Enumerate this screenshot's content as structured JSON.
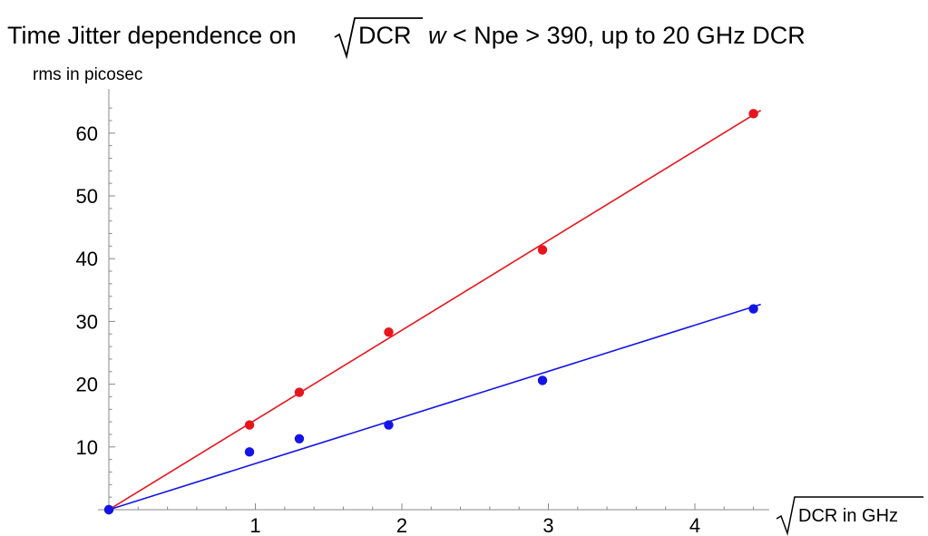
{
  "chart_data": {
    "type": "scatter",
    "title": {
      "prefix": "Time Jitter dependence on",
      "radical": "DCR",
      "suffix_italic": "w",
      "suffix": "< Npe > 390,  up to 20 GHz DCR"
    },
    "ylabel": "rms in picosec",
    "xlabel": "DCR in GHz",
    "xlim": [
      0,
      4.5
    ],
    "ylim": [
      0,
      66
    ],
    "x_ticks": [
      1,
      2,
      3,
      4
    ],
    "y_ticks": [
      10,
      20,
      30,
      40,
      50,
      60
    ],
    "grid": false,
    "series": [
      {
        "color": "#e8141c",
        "x": [
          0,
          0.96,
          1.3,
          1.91,
          2.96,
          4.4
        ],
        "y": [
          0,
          13.5,
          18.7,
          28.3,
          41.4,
          63.1
        ],
        "fit": {
          "x0": 0,
          "y0": 0,
          "slope": 14.3,
          "x1": 4.45
        }
      },
      {
        "color": "#1414e8",
        "x": [
          0,
          0.96,
          1.3,
          1.91,
          2.96,
          4.4
        ],
        "y": [
          0,
          9.2,
          11.3,
          13.5,
          20.6,
          32.0
        ],
        "fit": {
          "x0": 0,
          "y0": 0,
          "slope": 7.35,
          "x1": 4.45
        }
      }
    ]
  }
}
